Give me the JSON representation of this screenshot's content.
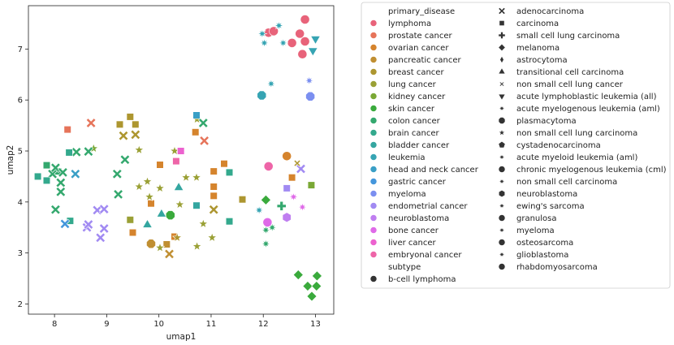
{
  "chart_data": {
    "type": "scatter",
    "xlabel": "umap1",
    "ylabel": "umap2",
    "xlim": [
      7.5,
      13.35
    ],
    "ylim": [
      1.8,
      7.85
    ],
    "xticks": [
      8,
      9,
      10,
      11,
      12,
      13
    ],
    "yticks": [
      2,
      3,
      4,
      5,
      6,
      7
    ],
    "grid": false,
    "legend_position": "outside right",
    "legend": {
      "hue_title": "primary_disease",
      "hue": [
        {
          "name": "lymphoma",
          "color": "#e8637a"
        },
        {
          "name": "prostate cancer",
          "color": "#e6745a"
        },
        {
          "name": "ovarian cancer",
          "color": "#d5842d"
        },
        {
          "name": "pancreatic cancer",
          "color": "#c08f32"
        },
        {
          "name": "breast cancer",
          "color": "#ad9630"
        },
        {
          "name": "lung cancer",
          "color": "#9aa035"
        },
        {
          "name": "kidney cancer",
          "color": "#7aa835"
        },
        {
          "name": "skin cancer",
          "color": "#3aaa3c"
        },
        {
          "name": "colon cancer",
          "color": "#34a86e"
        },
        {
          "name": "brain cancer",
          "color": "#33a98d"
        },
        {
          "name": "bladder cancer",
          "color": "#34a6a0"
        },
        {
          "name": "leukemia",
          "color": "#36a4b3"
        },
        {
          "name": "head and neck cancer",
          "color": "#3a9fc6"
        },
        {
          "name": "gastric cancer",
          "color": "#4496dc"
        },
        {
          "name": "myeloma",
          "color": "#7b8ff0"
        },
        {
          "name": "endometrial cancer",
          "color": "#a18af2"
        },
        {
          "name": "neuroblastoma",
          "color": "#bf7ef0"
        },
        {
          "name": "bone cancer",
          "color": "#df6ae8"
        },
        {
          "name": "liver cancer",
          "color": "#ec62cf"
        },
        {
          "name": "embryonal cancer",
          "color": "#ee65a8"
        }
      ],
      "style_title": "subtype",
      "style": [
        {
          "name": "b-cell lymphoma",
          "marker": "circle"
        },
        {
          "name": "adenocarcinoma",
          "marker": "x"
        },
        {
          "name": "carcinoma",
          "marker": "square"
        },
        {
          "name": "small cell lung carcinoma",
          "marker": "plus"
        },
        {
          "name": "melanoma",
          "marker": "diamond"
        },
        {
          "name": "astrocytoma",
          "marker": "thin-diamond"
        },
        {
          "name": "transitional cell carcinoma",
          "marker": "triangle-up"
        },
        {
          "name": "non small cell lung cancer",
          "marker": "small-x"
        },
        {
          "name": "acute lymphoblastic leukemia (all)",
          "marker": "triangle-down"
        },
        {
          "name": "acute myelogenous leukemia (aml)",
          "marker": "star8"
        },
        {
          "name": "plasmacytoma",
          "marker": "octagon"
        },
        {
          "name": "non small cell lung carcinoma",
          "marker": "star5"
        },
        {
          "name": "cystadenocarcinoma",
          "marker": "pentagon"
        },
        {
          "name": "acute myeloid leukemia (aml)",
          "marker": "star8"
        },
        {
          "name": "chronic myelogenous leukemia (cml)",
          "marker": "circle"
        },
        {
          "name": "non small cell carcinoma",
          "marker": "star8"
        },
        {
          "name": "neuroblastoma",
          "marker": "hexagon"
        },
        {
          "name": "ewing's sarcoma",
          "marker": "star8"
        },
        {
          "name": "granulosa",
          "marker": "circle"
        },
        {
          "name": "myeloma",
          "marker": "star8"
        },
        {
          "name": "osteosarcoma",
          "marker": "circle"
        },
        {
          "name": "glioblastoma",
          "marker": "star8"
        },
        {
          "name": "rhabdomyosarcoma",
          "marker": "circle"
        }
      ]
    },
    "points": [
      {
        "x": 12.1,
        "y": 7.32,
        "c": "#e8637a",
        "m": "circle"
      },
      {
        "x": 12.55,
        "y": 7.12,
        "c": "#e8637a",
        "m": "circle"
      },
      {
        "x": 12.7,
        "y": 7.3,
        "c": "#e8637a",
        "m": "circle"
      },
      {
        "x": 12.75,
        "y": 6.9,
        "c": "#e8637a",
        "m": "circle"
      },
      {
        "x": 12.8,
        "y": 7.15,
        "c": "#e8637a",
        "m": "circle"
      },
      {
        "x": 12.8,
        "y": 7.58,
        "c": "#e8637a",
        "m": "circle"
      },
      {
        "x": 12.2,
        "y": 7.35,
        "c": "#e8637a",
        "m": "circle"
      },
      {
        "x": 13.0,
        "y": 7.2,
        "c": "#36a4b3",
        "m": "triangle-down"
      },
      {
        "x": 12.95,
        "y": 6.97,
        "c": "#36a4b3",
        "m": "triangle-down"
      },
      {
        "x": 11.98,
        "y": 7.3,
        "c": "#36a4b3",
        "m": "star8"
      },
      {
        "x": 12.02,
        "y": 7.12,
        "c": "#36a4b3",
        "m": "star8"
      },
      {
        "x": 12.3,
        "y": 7.46,
        "c": "#36a4b3",
        "m": "star8"
      },
      {
        "x": 12.38,
        "y": 7.12,
        "c": "#36a4b3",
        "m": "star8"
      },
      {
        "x": 12.15,
        "y": 6.32,
        "c": "#36a4b3",
        "m": "star8"
      },
      {
        "x": 11.97,
        "y": 6.09,
        "c": "#36a4b3",
        "m": "octagon"
      },
      {
        "x": 12.9,
        "y": 6.07,
        "c": "#7b8ff0",
        "m": "octagon"
      },
      {
        "x": 12.88,
        "y": 6.38,
        "c": "#7b8ff0",
        "m": "star8"
      },
      {
        "x": 8.25,
        "y": 5.42,
        "c": "#e6745a",
        "m": "square"
      },
      {
        "x": 8.7,
        "y": 5.55,
        "c": "#e6745a",
        "m": "x"
      },
      {
        "x": 10.87,
        "y": 5.2,
        "c": "#e6745a",
        "m": "x"
      },
      {
        "x": 10.3,
        "y": 3.32,
        "c": "#d5842d",
        "m": "square"
      },
      {
        "x": 10.02,
        "y": 4.73,
        "c": "#d5842d",
        "m": "square"
      },
      {
        "x": 10.7,
        "y": 5.37,
        "c": "#d5842d",
        "m": "square"
      },
      {
        "x": 11.05,
        "y": 4.6,
        "c": "#d5842d",
        "m": "square"
      },
      {
        "x": 11.05,
        "y": 4.3,
        "c": "#d5842d",
        "m": "square"
      },
      {
        "x": 11.05,
        "y": 4.12,
        "c": "#d5842d",
        "m": "square"
      },
      {
        "x": 11.25,
        "y": 4.75,
        "c": "#d5842d",
        "m": "square"
      },
      {
        "x": 9.5,
        "y": 3.4,
        "c": "#d5842d",
        "m": "square"
      },
      {
        "x": 9.85,
        "y": 3.97,
        "c": "#d5842d",
        "m": "square"
      },
      {
        "x": 12.45,
        "y": 4.9,
        "c": "#d5842d",
        "m": "circle"
      },
      {
        "x": 12.55,
        "y": 4.48,
        "c": "#d5842d",
        "m": "square"
      },
      {
        "x": 9.85,
        "y": 3.18,
        "c": "#c08f32",
        "m": "octagon"
      },
      {
        "x": 10.15,
        "y": 3.17,
        "c": "#c08f32",
        "m": "square"
      },
      {
        "x": 10.2,
        "y": 2.98,
        "c": "#c08f32",
        "m": "x"
      },
      {
        "x": 9.25,
        "y": 5.52,
        "c": "#ad9630",
        "m": "square"
      },
      {
        "x": 9.45,
        "y": 5.67,
        "c": "#ad9630",
        "m": "square"
      },
      {
        "x": 9.55,
        "y": 5.52,
        "c": "#ad9630",
        "m": "square"
      },
      {
        "x": 9.32,
        "y": 5.3,
        "c": "#ad9630",
        "m": "x"
      },
      {
        "x": 9.55,
        "y": 5.32,
        "c": "#ad9630",
        "m": "x"
      },
      {
        "x": 11.6,
        "y": 4.05,
        "c": "#ad9630",
        "m": "square"
      },
      {
        "x": 11.05,
        "y": 3.85,
        "c": "#ad9630",
        "m": "x"
      },
      {
        "x": 10.35,
        "y": 3.3,
        "c": "#ad9630",
        "m": "star5"
      },
      {
        "x": 9.45,
        "y": 3.65,
        "c": "#9aa035",
        "m": "square"
      },
      {
        "x": 9.62,
        "y": 5.02,
        "c": "#9aa035",
        "m": "star5"
      },
      {
        "x": 9.78,
        "y": 4.4,
        "c": "#9aa035",
        "m": "star5"
      },
      {
        "x": 9.62,
        "y": 4.3,
        "c": "#9aa035",
        "m": "star5"
      },
      {
        "x": 9.82,
        "y": 4.1,
        "c": "#9aa035",
        "m": "star5"
      },
      {
        "x": 10.02,
        "y": 4.27,
        "c": "#9aa035",
        "m": "star5"
      },
      {
        "x": 10.02,
        "y": 3.1,
        "c": "#9aa035",
        "m": "star5"
      },
      {
        "x": 10.4,
        "y": 3.95,
        "c": "#9aa035",
        "m": "star5"
      },
      {
        "x": 10.52,
        "y": 4.48,
        "c": "#9aa035",
        "m": "star5"
      },
      {
        "x": 10.72,
        "y": 4.48,
        "c": "#9aa035",
        "m": "star5"
      },
      {
        "x": 10.73,
        "y": 5.62,
        "c": "#9aa035",
        "m": "star5"
      },
      {
        "x": 10.85,
        "y": 3.57,
        "c": "#9aa035",
        "m": "star5"
      },
      {
        "x": 10.73,
        "y": 3.13,
        "c": "#9aa035",
        "m": "star5"
      },
      {
        "x": 11.02,
        "y": 3.3,
        "c": "#9aa035",
        "m": "star5"
      },
      {
        "x": 10.3,
        "y": 5.0,
        "c": "#9aa035",
        "m": "star5"
      },
      {
        "x": 12.92,
        "y": 4.33,
        "c": "#7aa835",
        "m": "square"
      },
      {
        "x": 8.75,
        "y": 5.05,
        "c": "#7aa835",
        "m": "star5"
      },
      {
        "x": 12.05,
        "y": 4.04,
        "c": "#3aaa3c",
        "m": "diamond"
      },
      {
        "x": 12.67,
        "y": 2.57,
        "c": "#3aaa3c",
        "m": "diamond"
      },
      {
        "x": 12.85,
        "y": 2.35,
        "c": "#3aaa3c",
        "m": "diamond"
      },
      {
        "x": 12.93,
        "y": 2.15,
        "c": "#3aaa3c",
        "m": "diamond"
      },
      {
        "x": 13.02,
        "y": 2.35,
        "c": "#3aaa3c",
        "m": "diamond"
      },
      {
        "x": 13.03,
        "y": 2.55,
        "c": "#3aaa3c",
        "m": "diamond"
      },
      {
        "x": 10.22,
        "y": 3.74,
        "c": "#3aaa3c",
        "m": "octagon"
      },
      {
        "x": 7.85,
        "y": 4.72,
        "c": "#34a86e",
        "m": "square"
      },
      {
        "x": 8.07,
        "y": 4.6,
        "c": "#34a86e",
        "m": "square"
      },
      {
        "x": 7.96,
        "y": 4.55,
        "c": "#34a86e",
        "m": "x"
      },
      {
        "x": 8.02,
        "y": 4.67,
        "c": "#34a86e",
        "m": "x"
      },
      {
        "x": 8.16,
        "y": 4.58,
        "c": "#34a86e",
        "m": "x"
      },
      {
        "x": 8.12,
        "y": 4.38,
        "c": "#34a86e",
        "m": "x"
      },
      {
        "x": 8.12,
        "y": 4.2,
        "c": "#34a86e",
        "m": "x"
      },
      {
        "x": 8.02,
        "y": 3.85,
        "c": "#34a86e",
        "m": "x"
      },
      {
        "x": 8.42,
        "y": 4.98,
        "c": "#34a86e",
        "m": "x"
      },
      {
        "x": 8.65,
        "y": 4.99,
        "c": "#34a86e",
        "m": "x"
      },
      {
        "x": 9.2,
        "y": 4.55,
        "c": "#34a86e",
        "m": "x"
      },
      {
        "x": 9.35,
        "y": 4.83,
        "c": "#34a86e",
        "m": "x"
      },
      {
        "x": 9.22,
        "y": 4.15,
        "c": "#34a86e",
        "m": "x"
      },
      {
        "x": 10.85,
        "y": 5.55,
        "c": "#34a86e",
        "m": "x"
      },
      {
        "x": 12.35,
        "y": 3.92,
        "c": "#34a86e",
        "m": "plus"
      },
      {
        "x": 12.17,
        "y": 3.5,
        "c": "#34a86e",
        "m": "star8"
      },
      {
        "x": 12.05,
        "y": 3.45,
        "c": "#34a86e",
        "m": "star8"
      },
      {
        "x": 12.05,
        "y": 3.18,
        "c": "#34a86e",
        "m": "star8"
      },
      {
        "x": 7.68,
        "y": 4.5,
        "c": "#33a98d",
        "m": "square"
      },
      {
        "x": 7.85,
        "y": 4.42,
        "c": "#33a98d",
        "m": "square"
      },
      {
        "x": 8.28,
        "y": 4.97,
        "c": "#33a98d",
        "m": "square"
      },
      {
        "x": 8.3,
        "y": 3.63,
        "c": "#33a98d",
        "m": "square"
      },
      {
        "x": 11.35,
        "y": 4.58,
        "c": "#33a98d",
        "m": "square"
      },
      {
        "x": 11.35,
        "y": 3.62,
        "c": "#33a98d",
        "m": "square"
      },
      {
        "x": 10.72,
        "y": 3.93,
        "c": "#34a6a0",
        "m": "square"
      },
      {
        "x": 9.78,
        "y": 3.55,
        "c": "#34a6a0",
        "m": "triangle-up"
      },
      {
        "x": 10.05,
        "y": 3.76,
        "c": "#34a6a0",
        "m": "triangle-up"
      },
      {
        "x": 10.38,
        "y": 4.28,
        "c": "#34a6a0",
        "m": "triangle-up"
      },
      {
        "x": 11.92,
        "y": 3.84,
        "c": "#36a4b3",
        "m": "star8"
      },
      {
        "x": 10.72,
        "y": 5.7,
        "c": "#3a9fc6",
        "m": "square"
      },
      {
        "x": 8.4,
        "y": 4.55,
        "c": "#3a9fc6",
        "m": "x"
      },
      {
        "x": 8.2,
        "y": 3.57,
        "c": "#4496dc",
        "m": "x"
      },
      {
        "x": 8.62,
        "y": 3.5,
        "c": "#a18af2",
        "m": "x"
      },
      {
        "x": 8.65,
        "y": 3.56,
        "c": "#a18af2",
        "m": "x"
      },
      {
        "x": 8.82,
        "y": 3.84,
        "c": "#a18af2",
        "m": "x"
      },
      {
        "x": 8.95,
        "y": 3.48,
        "c": "#a18af2",
        "m": "x"
      },
      {
        "x": 8.88,
        "y": 3.3,
        "c": "#a18af2",
        "m": "x"
      },
      {
        "x": 8.95,
        "y": 3.86,
        "c": "#a18af2",
        "m": "x"
      },
      {
        "x": 12.72,
        "y": 4.65,
        "c": "#a18af2",
        "m": "x"
      },
      {
        "x": 12.45,
        "y": 4.27,
        "c": "#a18af2",
        "m": "square"
      },
      {
        "x": 12.65,
        "y": 4.76,
        "c": "#ad9630",
        "m": "small-x"
      },
      {
        "x": 12.45,
        "y": 3.7,
        "c": "#bf7ef0",
        "m": "hexagon"
      },
      {
        "x": 12.58,
        "y": 4.1,
        "c": "#df6ae8",
        "m": "star8"
      },
      {
        "x": 12.75,
        "y": 3.9,
        "c": "#df6ae8",
        "m": "star8"
      },
      {
        "x": 12.08,
        "y": 3.6,
        "c": "#df6ae8",
        "m": "circle"
      },
      {
        "x": 10.42,
        "y": 5.0,
        "c": "#ec62cf",
        "m": "square"
      },
      {
        "x": 10.33,
        "y": 4.8,
        "c": "#ee65a8",
        "m": "square"
      },
      {
        "x": 12.1,
        "y": 4.7,
        "c": "#ee65a8",
        "m": "circle"
      }
    ]
  }
}
